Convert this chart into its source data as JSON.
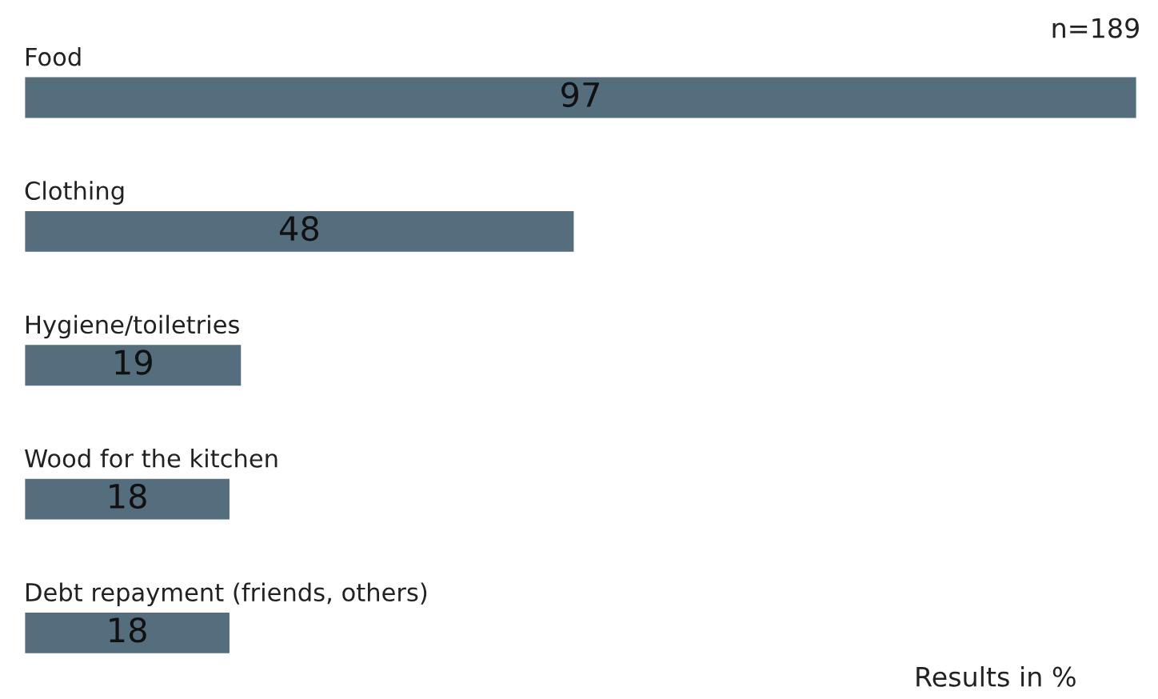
{
  "chart_data": {
    "type": "bar",
    "orientation": "horizontal",
    "categories": [
      "Food",
      "Clothing",
      "Hygiene/toiletries",
      "Wood for the kitchen",
      "Debt repayment (friends, others)"
    ],
    "values": [
      97,
      48,
      19,
      18,
      18
    ],
    "color": "#546e7e",
    "data_labels": true,
    "annotations": [
      "n=189",
      "Results in %"
    ]
  }
}
